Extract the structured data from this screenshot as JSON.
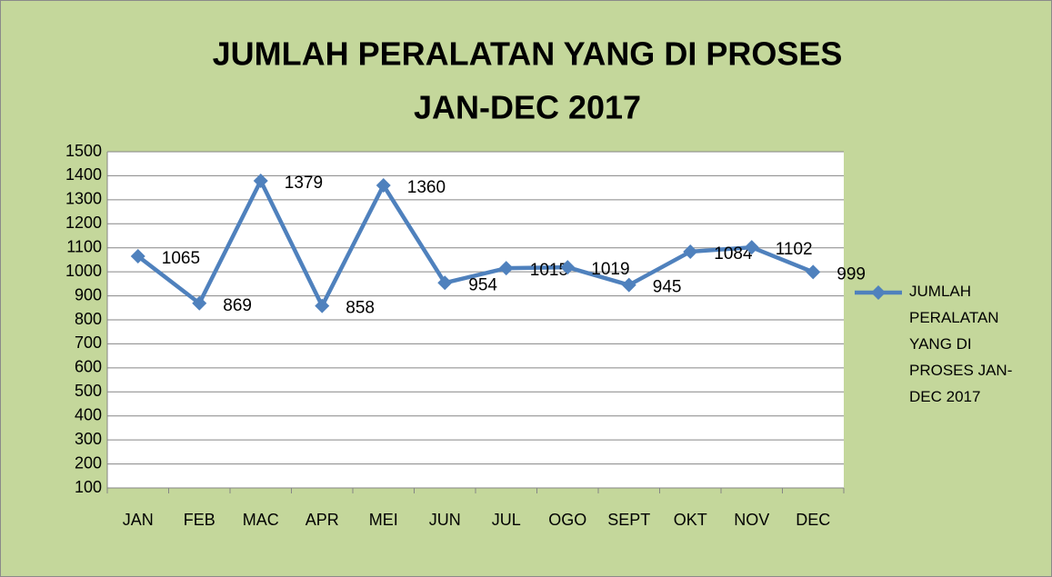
{
  "chart_data": {
    "type": "line",
    "title": [
      "JUMLAH PERALATAN YANG DI PROSES",
      "JAN-DEC 2017"
    ],
    "categories": [
      "JAN",
      "FEB",
      "MAC",
      "APR",
      "MEI",
      "JUN",
      "JUL",
      "OGO",
      "SEPT",
      "OKT",
      "NOV",
      "DEC"
    ],
    "series": [
      {
        "name": "JUMLAH PERALATAN YANG DI PROSES  JAN-DEC 2017",
        "color": "#4f81bd",
        "values": [
          1065,
          869,
          1379,
          858,
          1360,
          954,
          1015,
          1019,
          945,
          1084,
          1102,
          999
        ]
      }
    ],
    "ylim": [
      100,
      1500
    ],
    "yticks": [
      100,
      200,
      300,
      400,
      500,
      600,
      700,
      800,
      900,
      1000,
      1100,
      1200,
      1300,
      1400,
      1500
    ],
    "grid": true,
    "legend": "right"
  }
}
